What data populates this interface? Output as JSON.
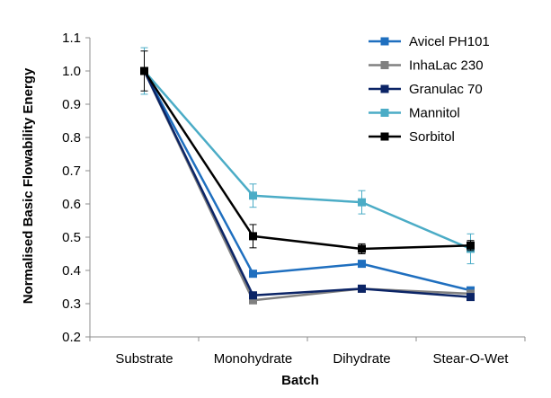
{
  "chart_data": {
    "type": "line",
    "categories": [
      "Substrate",
      "Monohydrate",
      "Dihydrate",
      "Stear-O-Wet"
    ],
    "xlabel": "Batch",
    "ylabel": "Normalised Basic Flowability Energy",
    "ylim": [
      0.2,
      1.1
    ],
    "yticks": [
      "0.2",
      "0.3",
      "0.4",
      "0.5",
      "0.6",
      "0.7",
      "0.8",
      "0.9",
      "1.0",
      "1.1"
    ],
    "grid": false,
    "legend_position": "top-right",
    "series": [
      {
        "name": "Avicel PH101",
        "color": "#1f6fbf",
        "values": [
          1.0,
          0.39,
          0.42,
          0.34
        ],
        "errors": [
          0.0,
          0.0,
          0.0,
          0.0
        ]
      },
      {
        "name": "InhaLac 230",
        "color": "#808080",
        "values": [
          1.0,
          0.31,
          0.345,
          0.33
        ],
        "errors": [
          0.0,
          0.0,
          0.0,
          0.0
        ]
      },
      {
        "name": "Granulac 70",
        "color": "#0b2466",
        "values": [
          1.0,
          0.325,
          0.345,
          0.32
        ],
        "errors": [
          0.0,
          0.0,
          0.0,
          0.0
        ]
      },
      {
        "name": "Mannitol",
        "color": "#4bacc6",
        "values": [
          1.0,
          0.625,
          0.605,
          0.465
        ],
        "errors": [
          0.07,
          0.035,
          0.035,
          0.045
        ]
      },
      {
        "name": "Sorbitol",
        "color": "#000000",
        "values": [
          1.0,
          0.503,
          0.465,
          0.475
        ],
        "errors": [
          0.06,
          0.035,
          0.015,
          0.015
        ]
      }
    ]
  }
}
